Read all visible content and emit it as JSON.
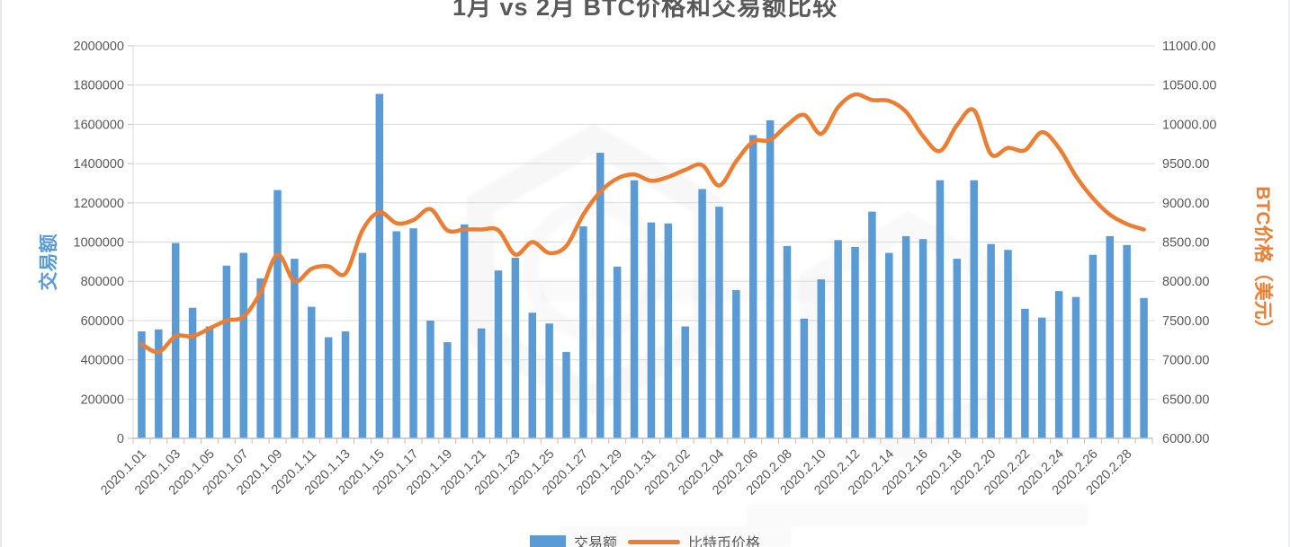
{
  "chart": {
    "title": "1月 vs 2月 BTC价格和交易额比较",
    "left_axis": {
      "title": "交易额",
      "color": "#5B9BD5"
    },
    "right_axis": {
      "title": "BTC价格（美元）",
      "color": "#ED7D31"
    },
    "legend": [
      {
        "label": "交易额",
        "type": "bar",
        "color": "#5B9BD5"
      },
      {
        "label": "比特币价格",
        "type": "line",
        "color": "#ED7D31"
      }
    ]
  },
  "chart_data": {
    "type": "combo",
    "title": "1月 vs 2月 BTC价格和交易额比较",
    "grid": true,
    "legend_position": "bottom",
    "categories": [
      "2020.1.01",
      "2020.1.02",
      "2020.1.03",
      "2020.1.04",
      "2020.1.05",
      "2020.1.06",
      "2020.1.07",
      "2020.1.08",
      "2020.1.09",
      "2020.1.10",
      "2020.1.11",
      "2020.1.12",
      "2020.1.13",
      "2020.1.14",
      "2020.1.15",
      "2020.1.16",
      "2020.1.17",
      "2020.1.18",
      "2020.1.19",
      "2020.1.20",
      "2020.1.21",
      "2020.1.22",
      "2020.1.23",
      "2020.1.24",
      "2020.1.25",
      "2020.1.26",
      "2020.1.27",
      "2020.1.28",
      "2020.1.29",
      "2020.1.30",
      "2020.1.31",
      "2020.2.01",
      "2020.2.02",
      "2020.2.03",
      "2020.2.04",
      "2020.2.05",
      "2020.2.06",
      "2020.2.07",
      "2020.2.08",
      "2020.2.09",
      "2020.2.10",
      "2020.2.11",
      "2020.2.12",
      "2020.2.13",
      "2020.2.14",
      "2020.2.15",
      "2020.2.16",
      "2020.2.17",
      "2020.2.18",
      "2020.2.19",
      "2020.2.20",
      "2020.2.21",
      "2020.2.22",
      "2020.2.23",
      "2020.2.24",
      "2020.2.25",
      "2020.2.26",
      "2020.2.27",
      "2020.2.28",
      "2020.2.29"
    ],
    "x_tick_every": 2,
    "left_ylim": [
      0,
      2000000
    ],
    "left_step": 200000,
    "right_ylim": [
      6000,
      11000
    ],
    "right_step": 500,
    "series": [
      {
        "name": "交易额",
        "type": "bar",
        "axis": "left",
        "color": "#5B9BD5",
        "values": [
          545000,
          555000,
          995000,
          665000,
          570000,
          880000,
          945000,
          815000,
          1265000,
          915000,
          670000,
          515000,
          545000,
          945000,
          1755000,
          1055000,
          1070000,
          600000,
          490000,
          1090000,
          560000,
          855000,
          920000,
          640000,
          585000,
          440000,
          1080000,
          1455000,
          875000,
          1315000,
          1100000,
          1095000,
          570000,
          1270000,
          1180000,
          755000,
          1545000,
          1620000,
          980000,
          610000,
          810000,
          1010000,
          975000,
          1155000,
          945000,
          1030000,
          1015000,
          1315000,
          915000,
          1315000,
          990000,
          960000,
          660000,
          615000,
          750000,
          720000,
          935000,
          1030000,
          985000,
          715000
        ]
      },
      {
        "name": "比特币价格",
        "type": "line",
        "axis": "right",
        "color": "#ED7D31",
        "values": [
          7200,
          7100,
          7300,
          7300,
          7400,
          7500,
          7550,
          7860,
          8340,
          8000,
          8160,
          8190,
          8100,
          8650,
          8880,
          8740,
          8780,
          8920,
          8650,
          8660,
          8660,
          8650,
          8340,
          8500,
          8360,
          8450,
          8850,
          9140,
          9310,
          9360,
          9280,
          9330,
          9420,
          9480,
          9220,
          9530,
          9780,
          9800,
          9990,
          10120,
          9880,
          10220,
          10380,
          10310,
          10300,
          10160,
          9850,
          9660,
          9990,
          10180,
          9620,
          9700,
          9670,
          9900,
          9700,
          9340,
          9060,
          8850,
          8730,
          8660
        ]
      }
    ],
    "colors": {
      "gridline": "#D9D9D9",
      "axis": "#BFBFBF",
      "tick_label": "#595959"
    }
  }
}
